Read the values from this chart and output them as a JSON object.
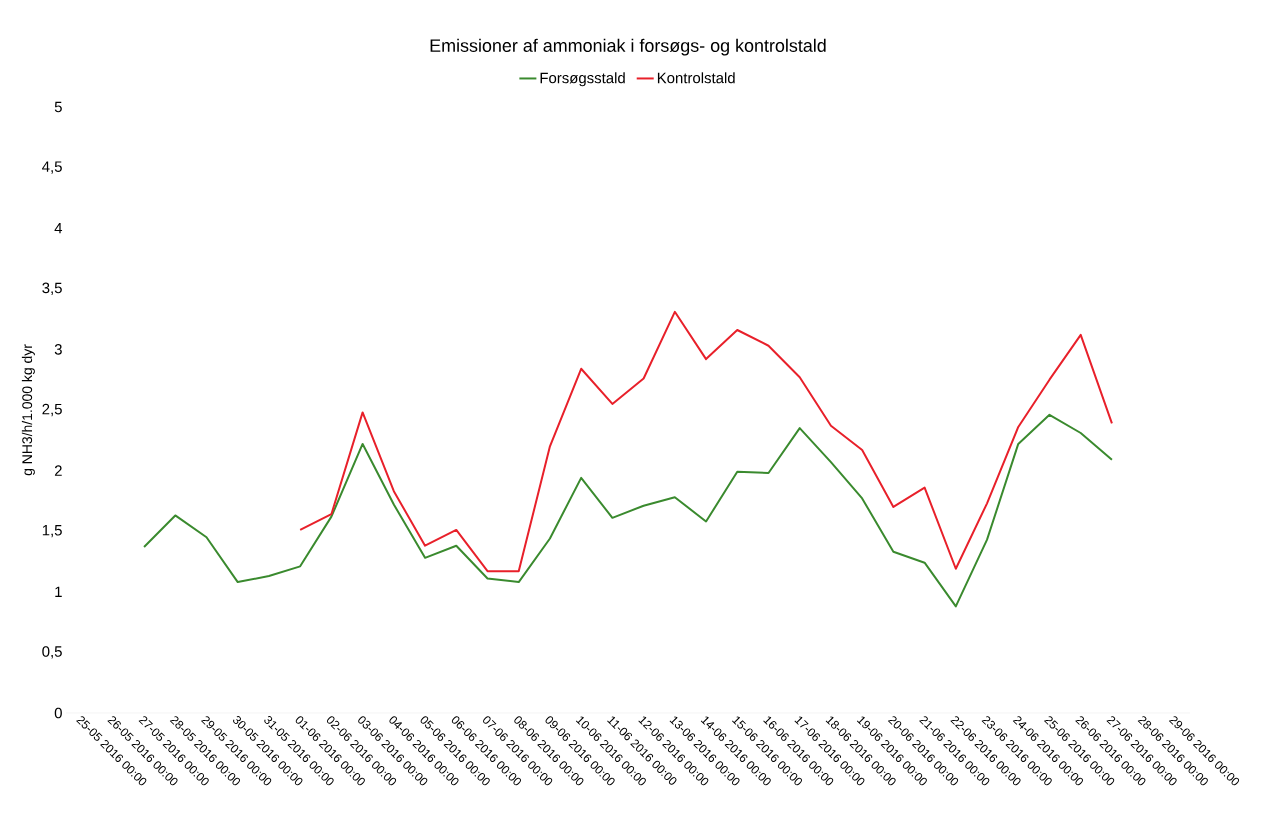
{
  "chart_data": {
    "type": "line",
    "title": "Emissioner af ammoniak i forsøgs- og kontrolstald",
    "ylabel": "g NH3/h/1.000 kg dyr",
    "categories": [
      "25-05 2016 00:00",
      "26-05 2016 00:00",
      "27-05 2016 00:00",
      "28-05 2016 00:00",
      "29-05 2016 00:00",
      "30-05 2016 00:00",
      "31-05 2016 00:00",
      "01-06 2016 00:00",
      "02-06 2016 00:00",
      "03-06 2016 00:00",
      "04-06 2016 00:00",
      "05-06 2016 00:00",
      "06-06 2016 00:00",
      "07-06 2016 00:00",
      "08-06 2016 00:00",
      "09-06 2016 00:00",
      "10-06 2016 00:00",
      "11-06 2016 00:00",
      "12-06 2016 00:00",
      "13-06 2016 00:00",
      "14-06 2016 00:00",
      "15-06 2016 00:00",
      "16-06 2016 00:00",
      "17-06 2016 00:00",
      "18-06 2016 00:00",
      "19-06 2016 00:00",
      "20-06 2016 00:00",
      "21-06 2016 00:00",
      "22-06 2016 00:00",
      "23-06 2016 00:00",
      "24-06 2016 00:00",
      "25-06 2016 00:00",
      "26-06 2016 00:00",
      "27-06 2016 00:00",
      "28-06 2016 00:00",
      "29-06 2016 00:00"
    ],
    "series": [
      {
        "name": "Forsøgsstald",
        "color": "#3a8a2e",
        "values": [
          null,
          null,
          1.37,
          1.63,
          1.45,
          1.08,
          1.13,
          1.21,
          1.62,
          2.22,
          1.72,
          1.28,
          1.38,
          1.11,
          1.08,
          1.44,
          1.94,
          1.61,
          1.71,
          1.78,
          1.58,
          1.99,
          1.98,
          2.35,
          2.07,
          1.77,
          1.33,
          1.24,
          0.88,
          1.43,
          2.22,
          2.46,
          2.31,
          2.09,
          null,
          null
        ]
      },
      {
        "name": "Kontrolstald",
        "color": "#e8202a",
        "values": [
          null,
          null,
          null,
          null,
          null,
          null,
          null,
          1.51,
          1.64,
          2.48,
          1.83,
          1.38,
          1.51,
          1.17,
          1.17,
          2.2,
          2.84,
          2.55,
          2.76,
          3.31,
          2.92,
          3.16,
          3.03,
          2.77,
          2.37,
          2.17,
          1.7,
          1.86,
          1.19,
          1.73,
          2.36,
          2.75,
          3.12,
          2.39,
          null,
          null
        ]
      }
    ],
    "ylim": [
      0,
      5
    ],
    "yticks": [
      0,
      {
        "value": 0.5,
        "label": "0,5"
      },
      1,
      {
        "value": 1.5,
        "label": "1,5"
      },
      2,
      {
        "value": 2.5,
        "label": "2,5"
      },
      3,
      {
        "value": 3.5,
        "label": "3,5"
      },
      4,
      {
        "value": 4.5,
        "label": "4,5"
      },
      5
    ],
    "legend": "top",
    "grid": false,
    "marker": "none",
    "line_style": "solid"
  }
}
